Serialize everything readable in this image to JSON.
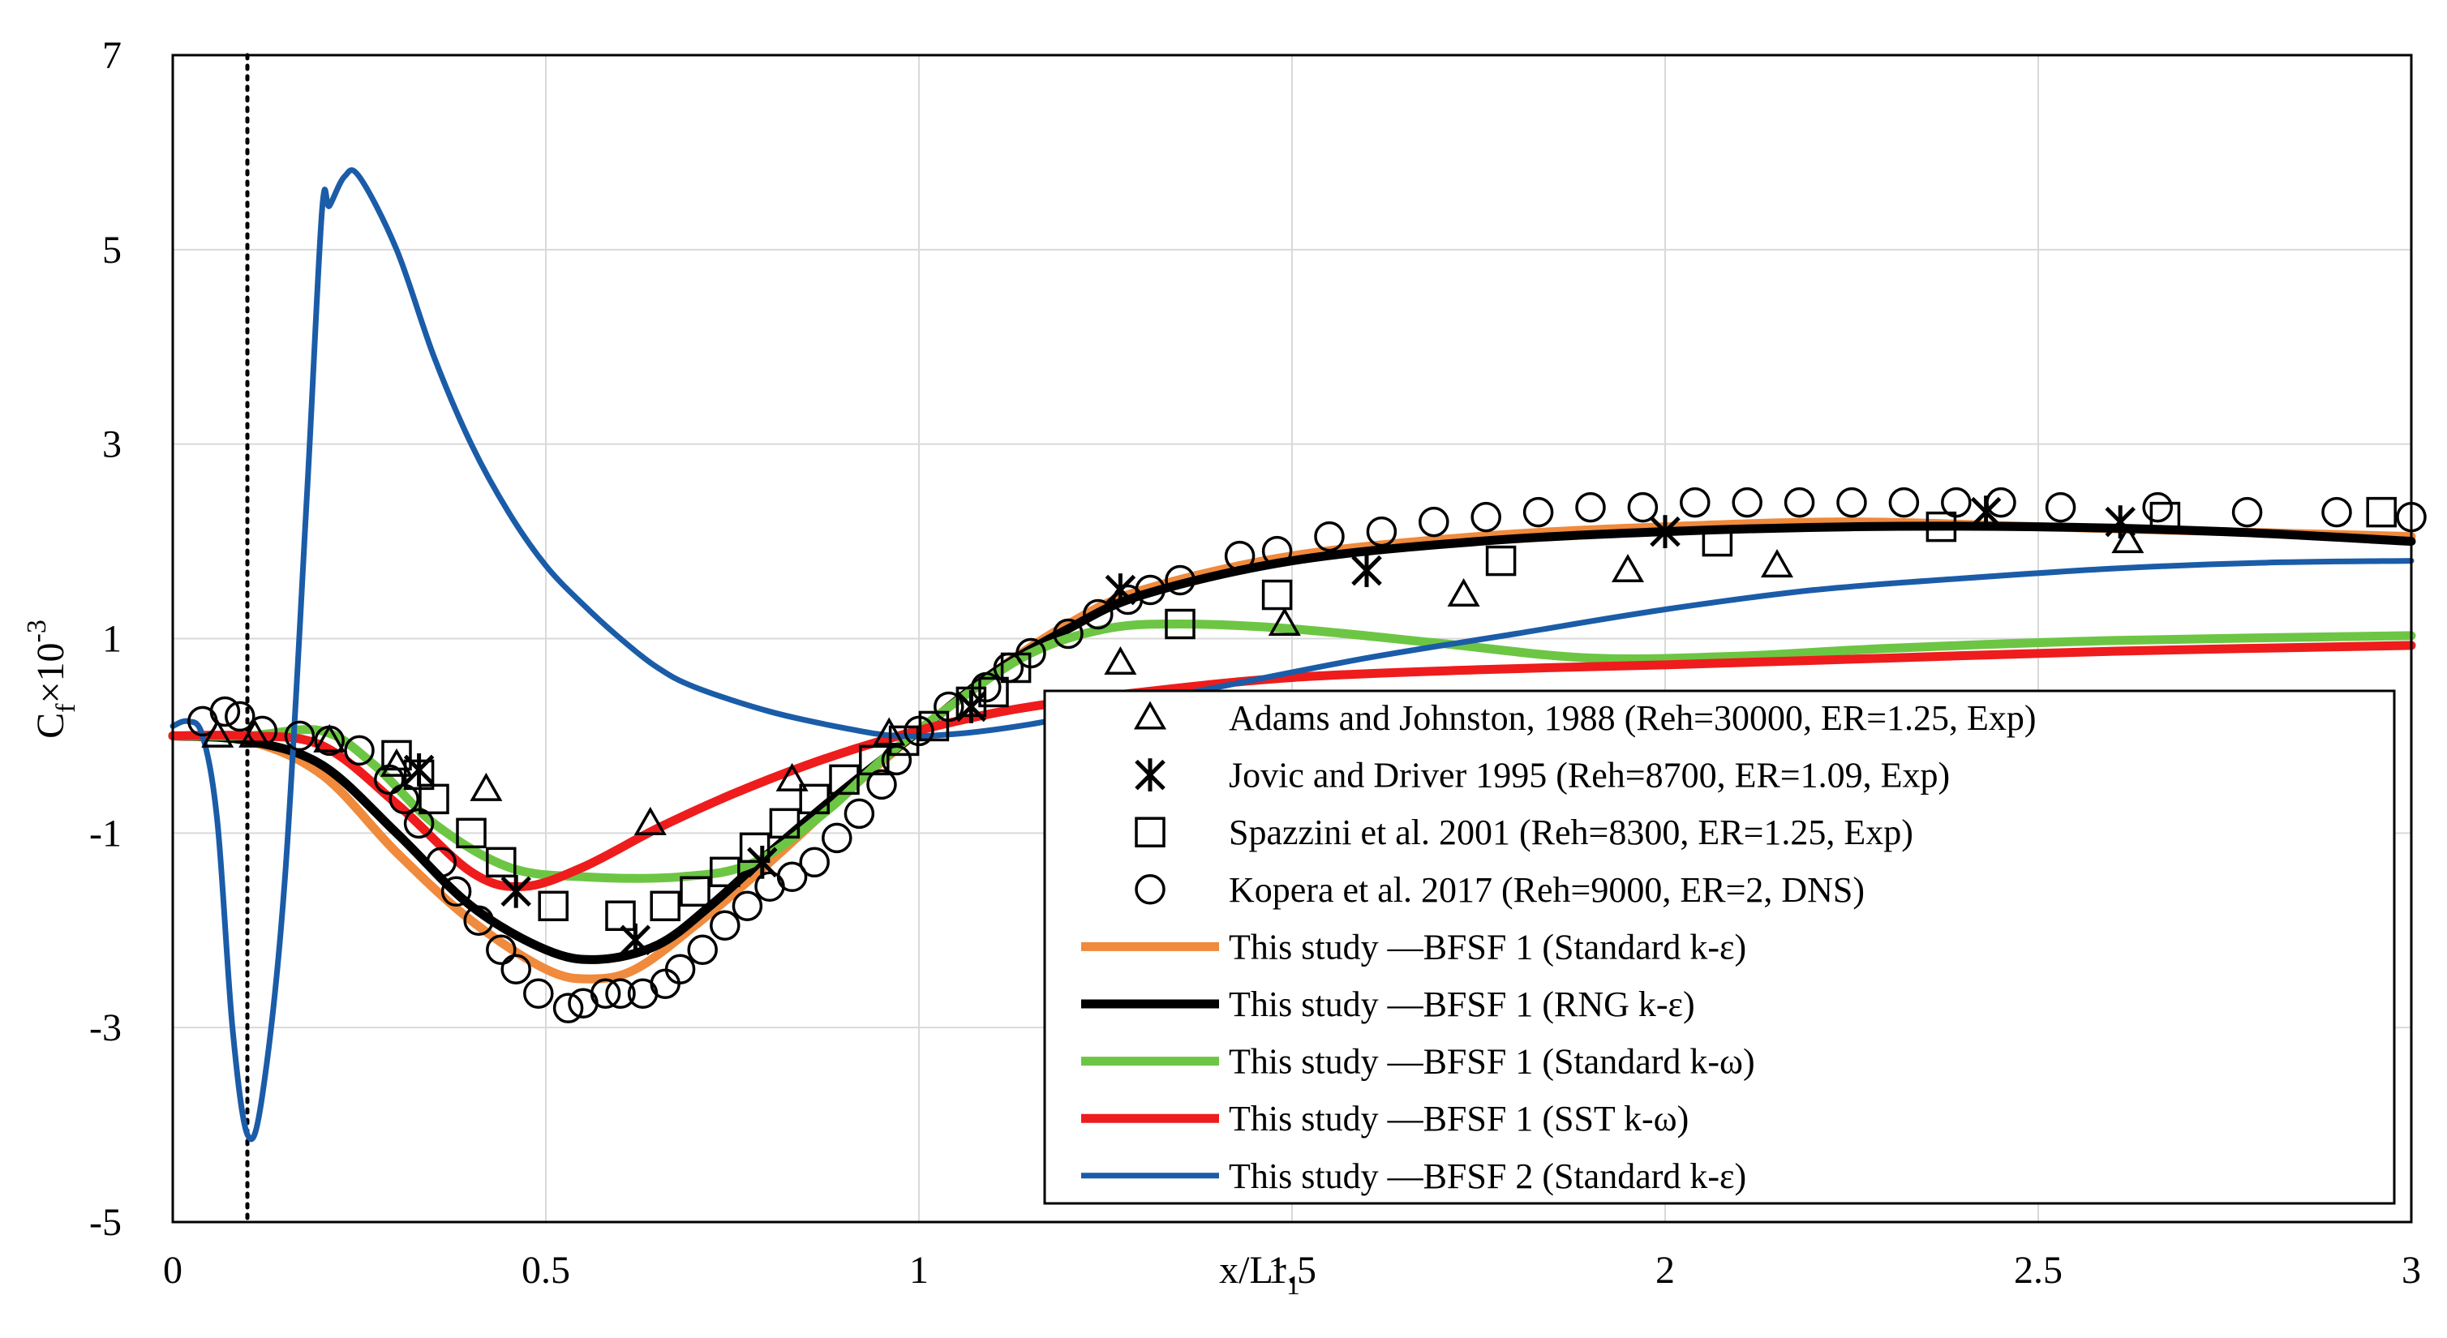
{
  "chart_data": {
    "type": "line",
    "title": "",
    "xlabel": {
      "main": "x/Lr",
      "sub": "1"
    },
    "ylabel": {
      "main": "C",
      "sub": "f",
      "mid": "×10",
      "sup": "-3"
    },
    "xlim": [
      0,
      3
    ],
    "ylim": [
      -5,
      7
    ],
    "xticks": [
      {
        "value": 0,
        "label": "0"
      },
      {
        "value": 0.5,
        "label": "0.5"
      },
      {
        "value": 1,
        "label": "1"
      },
      {
        "value": 1.5,
        "label": "1.5"
      },
      {
        "value": 2,
        "label": "2"
      },
      {
        "value": 2.5,
        "label": "2.5"
      },
      {
        "value": 3,
        "label": "3"
      }
    ],
    "yticks": [
      {
        "value": 7,
        "label": "7"
      },
      {
        "value": 5,
        "label": "5"
      },
      {
        "value": 3,
        "label": "3"
      },
      {
        "value": 1,
        "label": "1"
      },
      {
        "value": -1,
        "label": "-1"
      },
      {
        "value": -3,
        "label": "-3"
      },
      {
        "value": -5,
        "label": "-5"
      }
    ],
    "grid": true,
    "reference_line": {
      "x": 0.1,
      "style": "dotted"
    },
    "legend_position": "bottom-right",
    "series": [
      {
        "name": "Adams and Johnston, 1988 (Reh=30000, ER=1.25, Exp)",
        "kind": "scatter",
        "marker": "triangle",
        "points": [
          [
            0.06,
            0
          ],
          [
            0.11,
            0
          ],
          [
            0.21,
            -0.05
          ],
          [
            0.3,
            -0.3
          ],
          [
            0.42,
            -0.55
          ],
          [
            0.64,
            -0.9
          ],
          [
            0.83,
            -0.45
          ],
          [
            0.96,
            0.02
          ],
          [
            1.27,
            0.75
          ],
          [
            1.49,
            1.15
          ],
          [
            1.73,
            1.45
          ],
          [
            1.95,
            1.7
          ],
          [
            2.15,
            1.75
          ],
          [
            2.62,
            2.0
          ]
        ]
      },
      {
        "name": "Jovic and Driver 1995 (Reh=8700, ER=1.09, Exp)",
        "kind": "scatter",
        "marker": "asterisk",
        "points": [
          [
            0.33,
            -0.35
          ],
          [
            0.46,
            -1.6
          ],
          [
            0.62,
            -2.1
          ],
          [
            0.79,
            -1.3
          ],
          [
            1.07,
            0.3
          ],
          [
            1.27,
            1.5
          ],
          [
            1.6,
            1.7
          ],
          [
            2.0,
            2.1
          ],
          [
            2.43,
            2.3
          ],
          [
            2.61,
            2.2
          ]
        ]
      },
      {
        "name": "Spazzini et al. 2001 (Reh=8300, ER=1.25, Exp)",
        "kind": "scatter",
        "marker": "square",
        "points": [
          [
            0.3,
            -0.2
          ],
          [
            0.33,
            -0.4
          ],
          [
            0.35,
            -0.65
          ],
          [
            0.4,
            -1.0
          ],
          [
            0.44,
            -1.3
          ],
          [
            0.51,
            -1.75
          ],
          [
            0.6,
            -1.85
          ],
          [
            0.66,
            -1.75
          ],
          [
            0.7,
            -1.6
          ],
          [
            0.74,
            -1.4
          ],
          [
            0.78,
            -1.15
          ],
          [
            0.82,
            -0.9
          ],
          [
            0.86,
            -0.65
          ],
          [
            0.9,
            -0.45
          ],
          [
            0.94,
            -0.25
          ],
          [
            0.98,
            -0.05
          ],
          [
            1.02,
            0.1
          ],
          [
            1.07,
            0.35
          ],
          [
            1.1,
            0.45
          ],
          [
            1.13,
            0.7
          ],
          [
            1.35,
            1.15
          ],
          [
            1.48,
            1.45
          ],
          [
            1.78,
            1.8
          ],
          [
            2.07,
            2.0
          ],
          [
            2.37,
            2.15
          ],
          [
            2.67,
            2.25
          ],
          [
            2.96,
            2.3
          ]
        ]
      },
      {
        "name": "Kopera et al. 2017 (Reh=9000, ER=2, DNS)",
        "kind": "scatter",
        "marker": "circle",
        "points": [
          [
            0.04,
            0.15
          ],
          [
            0.07,
            0.25
          ],
          [
            0.09,
            0.2
          ],
          [
            0.12,
            0.05
          ],
          [
            0.17,
            0.0
          ],
          [
            0.21,
            -0.05
          ],
          [
            0.25,
            -0.15
          ],
          [
            0.29,
            -0.45
          ],
          [
            0.31,
            -0.65
          ],
          [
            0.33,
            -0.9
          ],
          [
            0.36,
            -1.3
          ],
          [
            0.38,
            -1.6
          ],
          [
            0.41,
            -1.9
          ],
          [
            0.44,
            -2.2
          ],
          [
            0.46,
            -2.4
          ],
          [
            0.49,
            -2.65
          ],
          [
            0.53,
            -2.8
          ],
          [
            0.55,
            -2.75
          ],
          [
            0.58,
            -2.65
          ],
          [
            0.6,
            -2.65
          ],
          [
            0.63,
            -2.65
          ],
          [
            0.66,
            -2.55
          ],
          [
            0.68,
            -2.4
          ],
          [
            0.71,
            -2.2
          ],
          [
            0.74,
            -1.95
          ],
          [
            0.77,
            -1.75
          ],
          [
            0.8,
            -1.55
          ],
          [
            0.83,
            -1.45
          ],
          [
            0.86,
            -1.3
          ],
          [
            0.89,
            -1.05
          ],
          [
            0.92,
            -0.8
          ],
          [
            0.95,
            -0.5
          ],
          [
            0.97,
            -0.25
          ],
          [
            1.0,
            0.05
          ],
          [
            1.04,
            0.3
          ],
          [
            1.09,
            0.5
          ],
          [
            1.12,
            0.7
          ],
          [
            1.15,
            0.85
          ],
          [
            1.2,
            1.05
          ],
          [
            1.24,
            1.25
          ],
          [
            1.28,
            1.4
          ],
          [
            1.31,
            1.5
          ],
          [
            1.35,
            1.6
          ],
          [
            1.43,
            1.85
          ],
          [
            1.48,
            1.9
          ],
          [
            1.55,
            2.05
          ],
          [
            1.62,
            2.1
          ],
          [
            1.69,
            2.2
          ],
          [
            1.76,
            2.25
          ],
          [
            1.83,
            2.3
          ],
          [
            1.9,
            2.35
          ],
          [
            1.97,
            2.35
          ],
          [
            2.04,
            2.4
          ],
          [
            2.11,
            2.4
          ],
          [
            2.18,
            2.4
          ],
          [
            2.25,
            2.4
          ],
          [
            2.32,
            2.4
          ],
          [
            2.39,
            2.4
          ],
          [
            2.45,
            2.4
          ],
          [
            2.53,
            2.35
          ],
          [
            2.66,
            2.35
          ],
          [
            2.78,
            2.3
          ],
          [
            2.9,
            2.3
          ],
          [
            3.0,
            2.25
          ]
        ]
      },
      {
        "name": "This study —BFSF 1 (Standard k-ε)",
        "kind": "line",
        "color": "#F08A3C",
        "width": 11,
        "points": [
          [
            0,
            0
          ],
          [
            0.1,
            -0.05
          ],
          [
            0.2,
            -0.4
          ],
          [
            0.3,
            -1.2
          ],
          [
            0.4,
            -1.9
          ],
          [
            0.5,
            -2.4
          ],
          [
            0.56,
            -2.5
          ],
          [
            0.62,
            -2.4
          ],
          [
            0.7,
            -1.95
          ],
          [
            0.8,
            -1.3
          ],
          [
            0.9,
            -0.6
          ],
          [
            1.0,
            0.05
          ],
          [
            1.1,
            0.65
          ],
          [
            1.2,
            1.15
          ],
          [
            1.3,
            1.5
          ],
          [
            1.5,
            1.85
          ],
          [
            1.75,
            2.05
          ],
          [
            2.0,
            2.15
          ],
          [
            2.25,
            2.2
          ],
          [
            2.5,
            2.15
          ],
          [
            2.75,
            2.1
          ],
          [
            3.0,
            2.05
          ]
        ]
      },
      {
        "name": "This study —BFSF 1 (RNG k-ε)",
        "kind": "line",
        "color": "#000000",
        "width": 11,
        "points": [
          [
            0,
            0
          ],
          [
            0.1,
            -0.05
          ],
          [
            0.2,
            -0.3
          ],
          [
            0.3,
            -1.0
          ],
          [
            0.4,
            -1.75
          ],
          [
            0.5,
            -2.2
          ],
          [
            0.57,
            -2.3
          ],
          [
            0.65,
            -2.15
          ],
          [
            0.72,
            -1.75
          ],
          [
            0.8,
            -1.2
          ],
          [
            0.9,
            -0.55
          ],
          [
            1.0,
            0.05
          ],
          [
            1.1,
            0.65
          ],
          [
            1.2,
            1.1
          ],
          [
            1.3,
            1.45
          ],
          [
            1.5,
            1.8
          ],
          [
            1.75,
            2.0
          ],
          [
            2.0,
            2.1
          ],
          [
            2.25,
            2.15
          ],
          [
            2.5,
            2.15
          ],
          [
            2.75,
            2.1
          ],
          [
            3.0,
            2.0
          ]
        ]
      },
      {
        "name": "This study —BFSF 1 (Standard k-ω)",
        "kind": "line",
        "color": "#6CC644",
        "width": 11,
        "points": [
          [
            0,
            0
          ],
          [
            0.1,
            0.0
          ],
          [
            0.2,
            0.05
          ],
          [
            0.27,
            -0.3
          ],
          [
            0.35,
            -0.9
          ],
          [
            0.45,
            -1.35
          ],
          [
            0.55,
            -1.45
          ],
          [
            0.68,
            -1.45
          ],
          [
            0.78,
            -1.3
          ],
          [
            0.88,
            -0.75
          ],
          [
            0.95,
            -0.25
          ],
          [
            1.05,
            0.35
          ],
          [
            1.15,
            0.85
          ],
          [
            1.25,
            1.1
          ],
          [
            1.35,
            1.15
          ],
          [
            1.5,
            1.1
          ],
          [
            1.7,
            0.95
          ],
          [
            1.9,
            0.8
          ],
          [
            2.1,
            0.82
          ],
          [
            2.3,
            0.9
          ],
          [
            2.6,
            0.98
          ],
          [
            3.0,
            1.03
          ]
        ]
      },
      {
        "name": "This study —BFSF 1 (SST k-ω)",
        "kind": "line",
        "color": "#EE1C1C",
        "width": 11,
        "points": [
          [
            0,
            0
          ],
          [
            0.1,
            0.0
          ],
          [
            0.2,
            -0.1
          ],
          [
            0.3,
            -0.7
          ],
          [
            0.4,
            -1.4
          ],
          [
            0.47,
            -1.55
          ],
          [
            0.55,
            -1.35
          ],
          [
            0.65,
            -0.95
          ],
          [
            0.75,
            -0.6
          ],
          [
            0.85,
            -0.3
          ],
          [
            0.95,
            -0.05
          ],
          [
            1.05,
            0.15
          ],
          [
            1.15,
            0.3
          ],
          [
            1.3,
            0.45
          ],
          [
            1.5,
            0.6
          ],
          [
            1.75,
            0.68
          ],
          [
            2.0,
            0.73
          ],
          [
            2.3,
            0.8
          ],
          [
            2.6,
            0.87
          ],
          [
            3.0,
            0.93
          ]
        ]
      },
      {
        "name": "This study —BFSF 2 (Standard k-ε)",
        "kind": "line",
        "color": "#1A5CA8",
        "width": 7,
        "points": [
          [
            0,
            0.1
          ],
          [
            0.02,
            0.15
          ],
          [
            0.04,
            0.0
          ],
          [
            0.06,
            -0.9
          ],
          [
            0.08,
            -3.0
          ],
          [
            0.1,
            -4.1
          ],
          [
            0.12,
            -3.7
          ],
          [
            0.15,
            -1.5
          ],
          [
            0.18,
            2.5
          ],
          [
            0.2,
            5.4
          ],
          [
            0.21,
            5.45
          ],
          [
            0.23,
            5.75
          ],
          [
            0.25,
            5.75
          ],
          [
            0.3,
            5.0
          ],
          [
            0.35,
            3.9
          ],
          [
            0.4,
            3.0
          ],
          [
            0.45,
            2.3
          ],
          [
            0.5,
            1.75
          ],
          [
            0.55,
            1.35
          ],
          [
            0.6,
            1.0
          ],
          [
            0.65,
            0.7
          ],
          [
            0.7,
            0.5
          ],
          [
            0.8,
            0.25
          ],
          [
            0.9,
            0.08
          ],
          [
            0.97,
            0.0
          ],
          [
            1.05,
            0.02
          ],
          [
            1.15,
            0.12
          ],
          [
            1.25,
            0.27
          ],
          [
            1.4,
            0.5
          ],
          [
            1.6,
            0.8
          ],
          [
            1.8,
            1.05
          ],
          [
            2.0,
            1.3
          ],
          [
            2.2,
            1.5
          ],
          [
            2.4,
            1.62
          ],
          [
            2.6,
            1.72
          ],
          [
            2.8,
            1.78
          ],
          [
            3.0,
            1.8
          ]
        ]
      }
    ]
  }
}
